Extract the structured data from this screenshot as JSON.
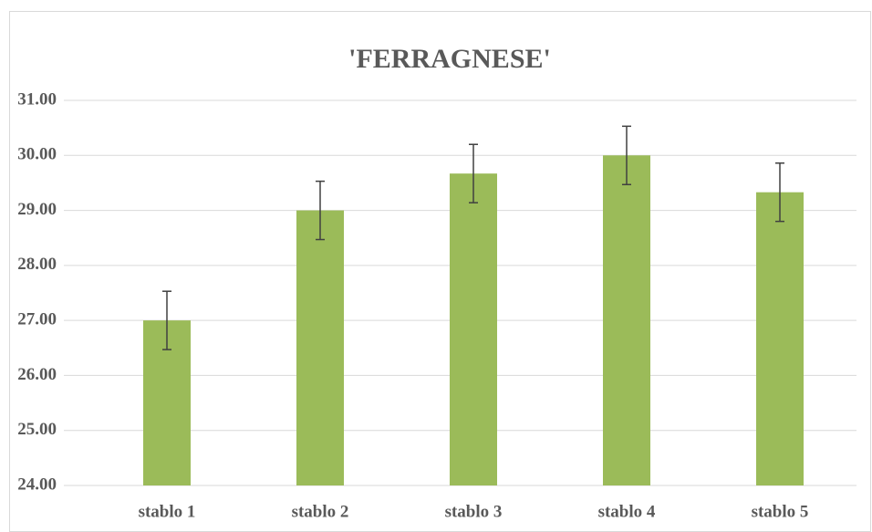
{
  "chart_data": {
    "type": "bar",
    "title": "'FERRAGNESE'",
    "categories": [
      "stablo 1",
      "stablo 2",
      "stablo 3",
      "stablo 4",
      "stablo 5"
    ],
    "values": [
      27.0,
      29.0,
      29.67,
      30.0,
      29.33
    ],
    "errors": [
      0.53,
      0.53,
      0.53,
      0.53,
      0.53
    ],
    "color": "#9bbb59",
    "error_color": "#404040",
    "ylim": [
      24,
      31
    ],
    "yticks": [
      {
        "value": 24,
        "label": "24.00"
      },
      {
        "value": 25,
        "label": "25.00"
      },
      {
        "value": 26,
        "label": "26.00"
      },
      {
        "value": 27,
        "label": "27.00"
      },
      {
        "value": 28,
        "label": "28.00"
      },
      {
        "value": 29,
        "label": "29.00"
      },
      {
        "value": 30,
        "label": "30.00"
      },
      {
        "value": 31,
        "label": "31.00"
      }
    ],
    "grid": true
  }
}
